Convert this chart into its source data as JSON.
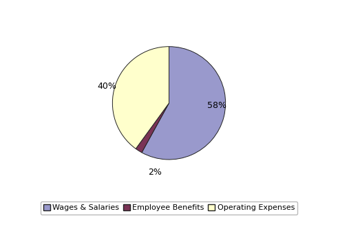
{
  "labels": [
    "Wages & Salaries",
    "Employee Benefits",
    "Operating Expenses"
  ],
  "values": [
    58,
    2,
    40
  ],
  "colors": [
    "#9999cc",
    "#7a3355",
    "#ffffcc"
  ],
  "edgecolor": "#222222",
  "legend_labels": [
    "Wages & Salaries",
    "Employee Benefits",
    "Operating Expenses"
  ],
  "background_color": "#ffffff",
  "startangle": 90,
  "text_fontsize": 9,
  "legend_fontsize": 8,
  "legend_edgecolor": "#aaaaaa",
  "pct_distance": 1.18
}
